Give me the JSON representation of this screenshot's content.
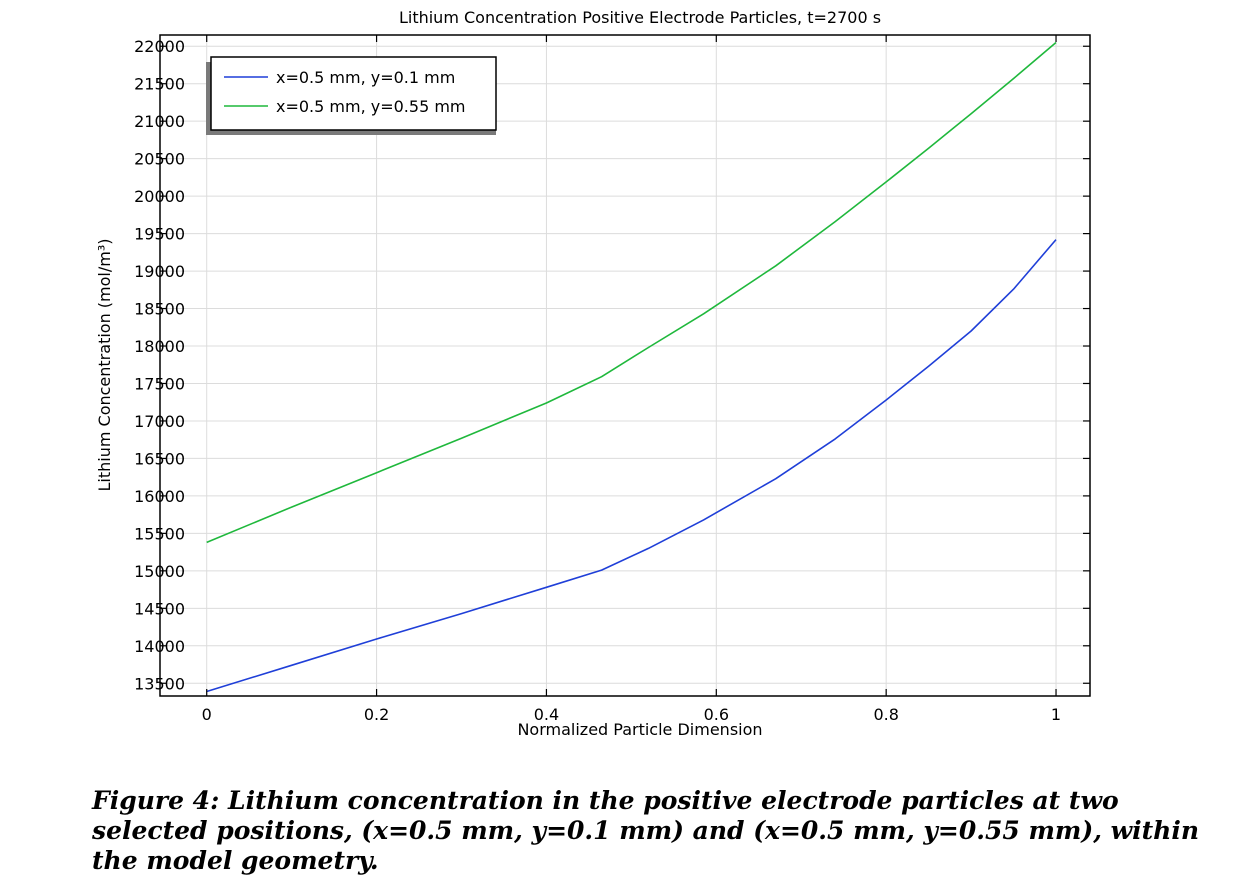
{
  "chart_data": {
    "type": "line",
    "title": "Lithium Concentration Positive Electrode Particles, t=2700 s",
    "xlabel": "Normalized Particle Dimension",
    "ylabel": "Lithium Concentration (mol/m³)",
    "xlim": [
      -0.055,
      1.04
    ],
    "ylim": [
      13330,
      22150
    ],
    "x_ticks": [
      0,
      0.2,
      0.4,
      0.6,
      0.8,
      1
    ],
    "x_tick_labels": [
      "0",
      "0.2",
      "0.4",
      "0.6",
      "0.8",
      "1"
    ],
    "y_ticks": [
      13500,
      14000,
      14500,
      15000,
      15500,
      16000,
      16500,
      17000,
      17500,
      18000,
      18500,
      19000,
      19500,
      20000,
      20500,
      21000,
      21500,
      22000
    ],
    "y_tick_labels": [
      "13500",
      "14000",
      "14500",
      "15000",
      "15500",
      "16000",
      "16500",
      "17000",
      "17500",
      "18000",
      "18500",
      "19000",
      "19500",
      "20000",
      "20500",
      "21000",
      "21500",
      "22000"
    ],
    "grid": true,
    "legend_position": "top-left",
    "series": [
      {
        "name": "x=0.5 mm, y=0.1 mm",
        "color": "#1f3fd8",
        "x": [
          0,
          0.1,
          0.2,
          0.3,
          0.4,
          0.465,
          0.52,
          0.585,
          0.67,
          0.74,
          0.8,
          0.85,
          0.9,
          0.95,
          1.0
        ],
        "y": [
          13390,
          13740,
          14090,
          14430,
          14780,
          15010,
          15300,
          15680,
          16230,
          16760,
          17280,
          17730,
          18200,
          18760,
          19420
        ]
      },
      {
        "name": "x=0.5 mm, y=0.55 mm",
        "color": "#1fb83c",
        "x": [
          0,
          0.1,
          0.2,
          0.3,
          0.4,
          0.465,
          0.52,
          0.585,
          0.67,
          0.74,
          0.8,
          0.85,
          0.9,
          0.95,
          1.0
        ],
        "y": [
          15380,
          15850,
          16310,
          16770,
          17240,
          17590,
          17980,
          18430,
          19070,
          19660,
          20190,
          20640,
          21100,
          21570,
          22050
        ]
      }
    ]
  },
  "caption": {
    "text": "Figure 4: Lithium concentration in the positive electrode particles at two selected positions, (x=0.5 mm, y=0.1 mm) and (x=0.5 mm, y=0.55 mm), within the model geometry."
  }
}
